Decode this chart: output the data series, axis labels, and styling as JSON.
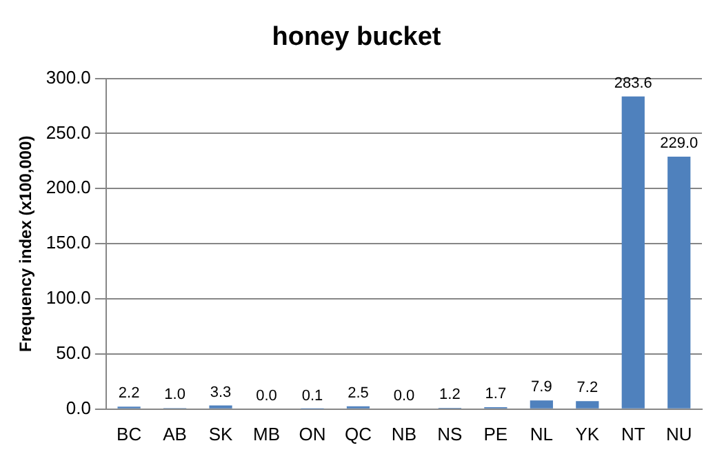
{
  "chart_data": {
    "type": "bar",
    "title": "honey bucket",
    "ylabel": "Frequency index (x100,000)",
    "categories": [
      "BC",
      "AB",
      "SK",
      "MB",
      "ON",
      "QC",
      "NB",
      "NS",
      "PE",
      "NL",
      "YK",
      "NT",
      "NU"
    ],
    "values": [
      2.2,
      1.0,
      3.3,
      0.0,
      0.1,
      2.5,
      0.0,
      1.2,
      1.7,
      7.9,
      7.2,
      283.6,
      229.0
    ],
    "value_labels": [
      "2.2",
      "1.0",
      "3.3",
      "0.0",
      "0.1",
      "2.5",
      "0.0",
      "1.2",
      "1.7",
      "7.9",
      "7.2",
      "283.6",
      "229.0"
    ],
    "color": "#4f81bd",
    "ylim": [
      0,
      300
    ],
    "yticks": [
      {
        "value": 0,
        "label": "0.0"
      },
      {
        "value": 50,
        "label": "50.0"
      },
      {
        "value": 100,
        "label": "100.0"
      },
      {
        "value": 150,
        "label": "150.0"
      },
      {
        "value": 200,
        "label": "200.0"
      },
      {
        "value": 250,
        "label": "250.0"
      },
      {
        "value": 300,
        "label": "300.0"
      }
    ],
    "grid": "y",
    "legend": false
  }
}
